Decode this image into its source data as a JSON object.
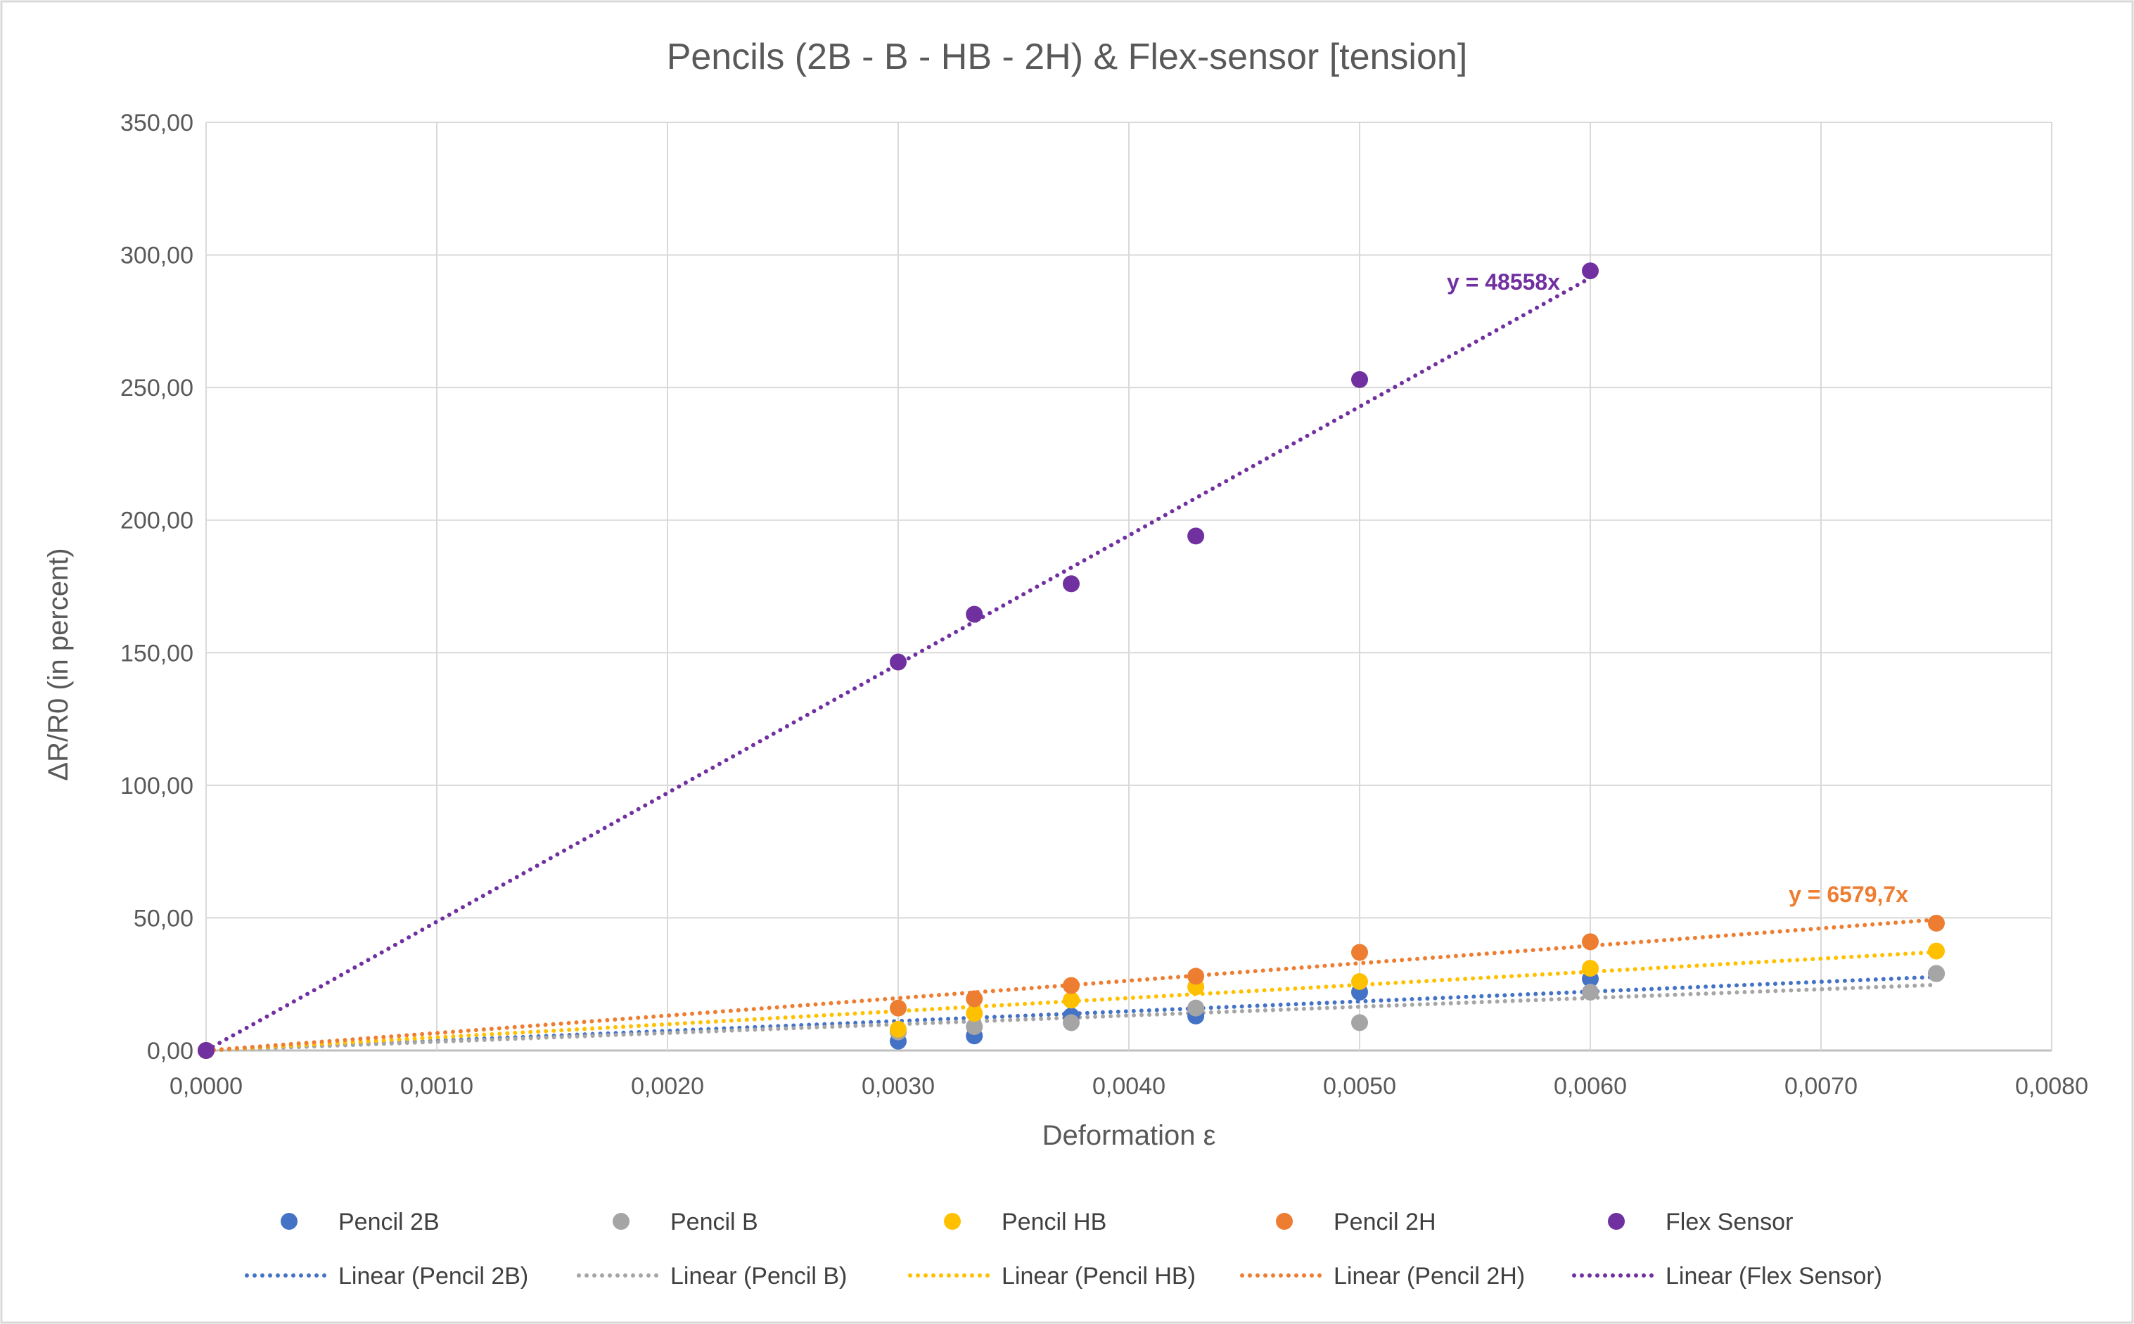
{
  "chart_data": {
    "type": "scatter",
    "title": "Pencils (2B - B - HB - 2H) & Flex-sensor [tension]",
    "xlabel": "Deformation ε",
    "ylabel": "ΔR/R0 (in percent)",
    "xlim": [
      0,
      0.008
    ],
    "ylim": [
      0,
      350
    ],
    "x_ticks": [
      0,
      0.001,
      0.002,
      0.003,
      0.004,
      0.005,
      0.006,
      0.007,
      0.008
    ],
    "y_ticks": [
      0,
      50,
      100,
      150,
      200,
      250,
      300,
      350
    ],
    "x_tick_labels": [
      "0,0000",
      "0,0010",
      "0,0020",
      "0,0030",
      "0,0040",
      "0,0050",
      "0,0060",
      "0,0070",
      "0,0080"
    ],
    "y_tick_labels": [
      "0,00",
      "50,00",
      "100,00",
      "150,00",
      "200,00",
      "250,00",
      "300,00",
      "350,00"
    ],
    "grid": true,
    "legend_position": "bottom",
    "series": [
      {
        "name": "Pencil 2B",
        "color": "#4472C4",
        "x": [
          0,
          0.003,
          0.00333,
          0.00375,
          0.00429,
          0.005,
          0.006,
          0.0075
        ],
        "y": [
          0,
          3.5,
          5.5,
          13,
          13,
          22,
          27,
          29
        ],
        "trend_slope": 3700,
        "trend_name": "Linear (Pencil 2B)"
      },
      {
        "name": "Pencil B",
        "color": "#A5A5A5",
        "x": [
          0,
          0.003,
          0.00333,
          0.00375,
          0.00429,
          0.005,
          0.006,
          0.0075
        ],
        "y": [
          0,
          7,
          9,
          10.5,
          16,
          10.5,
          22,
          29
        ],
        "trend_slope": 3300,
        "trend_name": "Linear (Pencil B)"
      },
      {
        "name": "Pencil HB",
        "color": "#FFC000",
        "x": [
          0,
          0.003,
          0.00333,
          0.00375,
          0.00429,
          0.005,
          0.006,
          0.0075
        ],
        "y": [
          0,
          8,
          14,
          19,
          24,
          26,
          31,
          37.5
        ],
        "trend_slope": 4950,
        "trend_name": "Linear (Pencil HB)"
      },
      {
        "name": "Pencil 2H",
        "color": "#ED7D31",
        "x": [
          0,
          0.003,
          0.00333,
          0.00375,
          0.00429,
          0.005,
          0.006,
          0.0075
        ],
        "y": [
          0,
          16,
          19.5,
          24.5,
          28,
          37,
          41,
          48
        ],
        "trend_slope": 6579.7,
        "trend_name": "Linear (Pencil 2H)",
        "equation": "y = 6579,7x"
      },
      {
        "name": "Flex Sensor",
        "color": "#7030A0",
        "x": [
          0,
          0.003,
          0.00333,
          0.00375,
          0.00429,
          0.005,
          0.006
        ],
        "y": [
          0,
          146.5,
          164.5,
          176,
          194,
          253,
          294
        ],
        "trend_slope": 48558,
        "trend_name": "Linear (Flex Sensor)",
        "equation": "y = 48558x"
      }
    ]
  }
}
